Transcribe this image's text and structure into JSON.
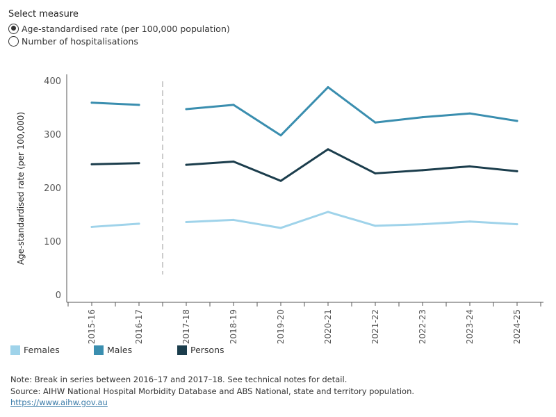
{
  "controls": {
    "select_label": "Select measure",
    "options": [
      {
        "label": "Age-standardised rate (per 100,000 population)",
        "selected": true
      },
      {
        "label": "Number of hospitalisations",
        "selected": false
      }
    ]
  },
  "colors": {
    "females": "#9fd3ea",
    "males": "#3a8eaf",
    "persons": "#1b3d4c",
    "axis": "#555555",
    "break_line": "#bbbbbb"
  },
  "chart_data": {
    "type": "line",
    "ylabel": "Age-standardised rate (per 100,000)",
    "xlabel": "",
    "ylim": [
      0,
      400
    ],
    "yticks": [
      0,
      100,
      200,
      300,
      400
    ],
    "grid": false,
    "legend_position": "bottom",
    "series_break_after": "2016-17",
    "categories": [
      "2015-16",
      "2016-17",
      "2017-18",
      "2018-19",
      "2019-20",
      "2020-21",
      "2021-22",
      "2022-23",
      "2023-24",
      "2024-25"
    ],
    "series": [
      {
        "name": "Females",
        "color_key": "females",
        "values": [
          128,
          134,
          137,
          141,
          126,
          156,
          130,
          133,
          138,
          133
        ]
      },
      {
        "name": "Males",
        "color_key": "males",
        "values": [
          360,
          356,
          348,
          356,
          299,
          389,
          323,
          333,
          340,
          326
        ]
      },
      {
        "name": "Persons",
        "color_key": "persons",
        "values": [
          245,
          247,
          244,
          250,
          214,
          273,
          228,
          234,
          241,
          232
        ]
      }
    ]
  },
  "footer": {
    "note": "Note: Break in series between 2016–17 and 2017–18. See technical notes for detail.",
    "source": "Source: AIHW National Hospital Morbidity Database and ABS National, state and territory population.",
    "link": "https://www.aihw.gov.au"
  }
}
